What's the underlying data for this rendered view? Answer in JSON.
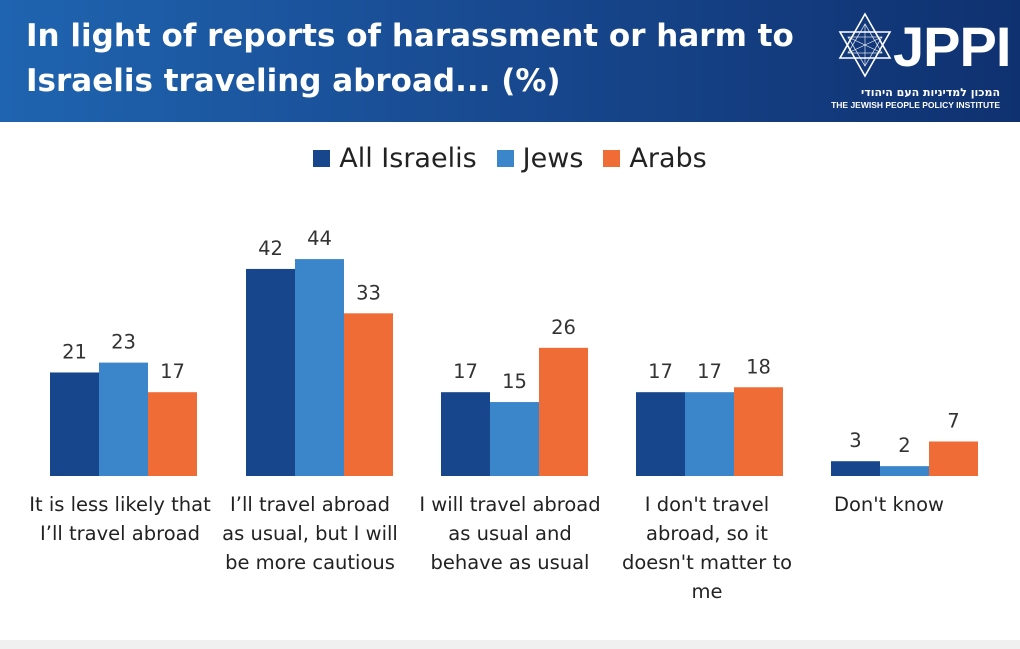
{
  "header": {
    "title": "In light of reports of harassment or harm to Israelis traveling abroad... (%)"
  },
  "logo": {
    "name": "JPPI",
    "hebrew": "המכון למדיניות העם היהודי",
    "english": "THE JEWISH PEOPLE POLICY INSTITUTE"
  },
  "colors": {
    "header_start": "#1f64b0",
    "header_end": "#0f3170",
    "all_israelis": "#17468c",
    "jews": "#3b86cb",
    "arabs": "#f06c37"
  },
  "chart_data": {
    "type": "bar",
    "title": "In light of reports of harassment or harm to Israelis traveling abroad... (%)",
    "categories": [
      "It is less likely that I’ll travel abroad",
      "I’ll travel abroad as usual, but I will be more cautious",
      "I will travel abroad as usual and behave as usual",
      "I don't travel abroad, so it doesn't matter to me",
      "Don't know"
    ],
    "series": [
      {
        "name": "All Israelis",
        "values": [
          21,
          42,
          17,
          17,
          3
        ]
      },
      {
        "name": "Jews",
        "values": [
          23,
          44,
          15,
          17,
          2
        ]
      },
      {
        "name": "Arabs",
        "values": [
          17,
          33,
          26,
          18,
          7
        ]
      }
    ],
    "xlabel": "",
    "ylabel": "",
    "ylim": [
      0,
      50
    ],
    "grid": false,
    "legend_position": "top-center",
    "data_labels": true
  }
}
